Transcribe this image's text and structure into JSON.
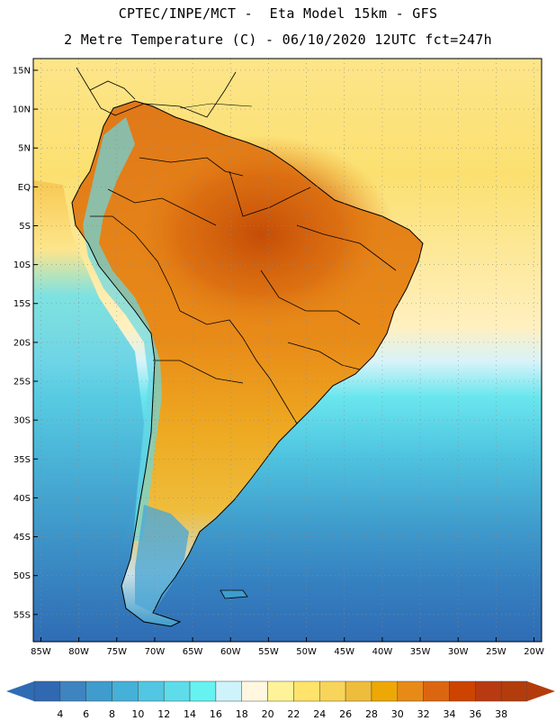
{
  "header": {
    "line1": "CPTEC/INPE/MCT -  Eta Model 15km - GFS",
    "line2": "2 Metre Temperature (C) - 06/10/2020 12UTC fct=247h"
  },
  "map": {
    "lat_labels": [
      "15N",
      "10N",
      "5N",
      "EQ",
      "5S",
      "10S",
      "15S",
      "20S",
      "25S",
      "30S",
      "35S",
      "40S",
      "45S",
      "50S",
      "55S"
    ],
    "lat_values": [
      15,
      10,
      5,
      0,
      -5,
      -10,
      -15,
      -20,
      -25,
      -30,
      -35,
      -40,
      -45,
      -50,
      -55
    ],
    "lon_labels": [
      "85W",
      "80W",
      "75W",
      "70W",
      "65W",
      "60W",
      "55W",
      "50W",
      "45W",
      "40W",
      "35W",
      "30W",
      "25W",
      "20W"
    ],
    "lon_values": [
      -85,
      -80,
      -75,
      -70,
      -65,
      -60,
      -55,
      -50,
      -45,
      -40,
      -35,
      -30,
      -25,
      -20
    ],
    "lon_range": [
      -86,
      -19
    ],
    "lat_range": [
      -58.5,
      16.5
    ]
  },
  "colorbar": {
    "labels": [
      "4",
      "6",
      "8",
      "10",
      "12",
      "14",
      "16",
      "18",
      "20",
      "22",
      "24",
      "26",
      "28",
      "30",
      "32",
      "34",
      "36",
      "38"
    ],
    "colors": [
      "#3068b2",
      "#3e84c0",
      "#3f9ccc",
      "#45b0d8",
      "#52c6e2",
      "#5edcea",
      "#67f2f2",
      "#cff3fa",
      "#fff7e0",
      "#fff39a",
      "#ffe36c",
      "#f8d45a",
      "#efbd3c",
      "#eea806",
      "#e88a18",
      "#dc6610",
      "#cc4400",
      "#b83a10",
      "#b33c0c"
    ],
    "under_color": "#2f6cb4",
    "over_color": "#b33c0c"
  }
}
